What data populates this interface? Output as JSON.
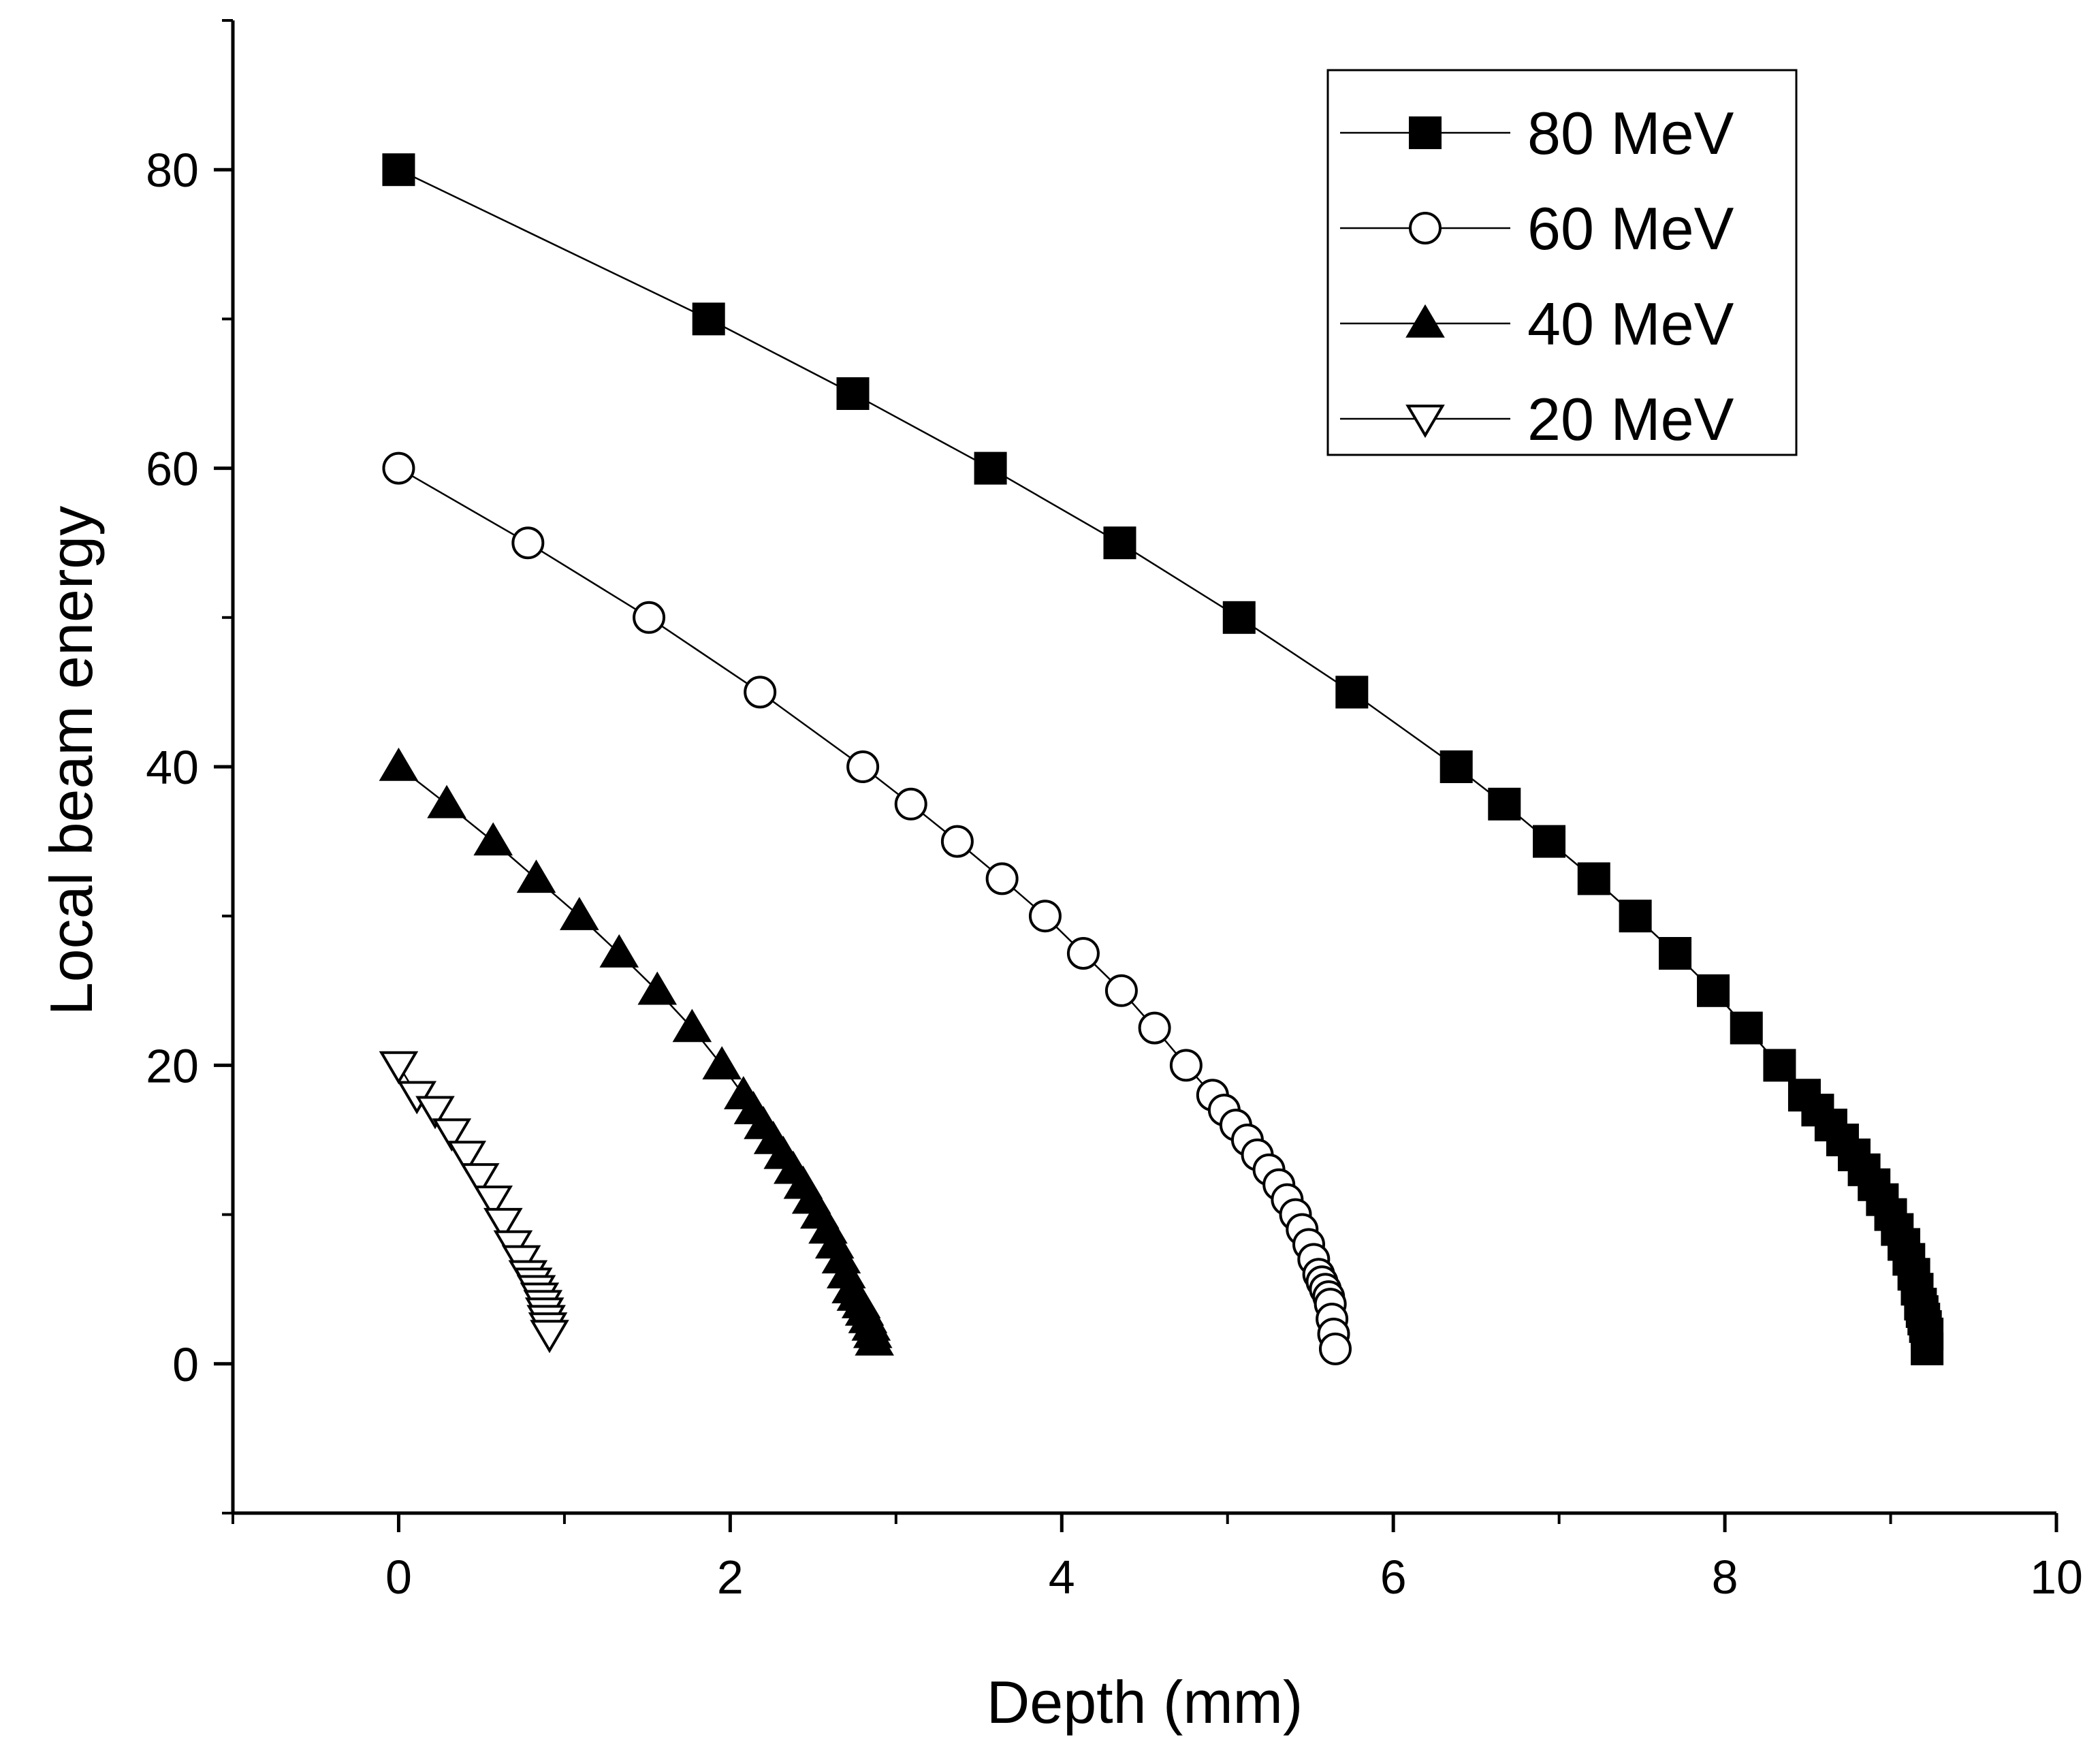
{
  "chart_data": {
    "type": "line",
    "title": "",
    "xlabel": "Depth (mm)",
    "ylabel": "Local beam energy",
    "xlim": [
      -1,
      10
    ],
    "ylim": [
      -10,
      90
    ],
    "xticks": [
      0,
      2,
      4,
      6,
      8,
      10
    ],
    "yticks": [
      0,
      20,
      40,
      60,
      80
    ],
    "grid": false,
    "legend_position": "top-right",
    "series": [
      {
        "name": "80 MeV",
        "marker": "square-filled",
        "x": [
          0,
          1.87,
          2.74,
          3.57,
          4.35,
          5.07,
          5.75,
          6.38,
          6.67,
          6.94,
          7.21,
          7.46,
          7.7,
          7.93,
          8.13,
          8.33,
          8.48,
          8.56,
          8.64,
          8.71,
          8.78,
          8.84,
          8.9,
          8.95,
          9.0,
          9.04,
          9.08,
          9.11,
          9.14,
          9.16,
          9.18,
          9.19,
          9.2,
          9.21,
          9.22,
          9.22
        ],
        "y": [
          80,
          70,
          65,
          60,
          55,
          50,
          45,
          40,
          37.5,
          35,
          32.5,
          30,
          27.5,
          25,
          22.5,
          20,
          18,
          17,
          16,
          15,
          14,
          13,
          12,
          11,
          10,
          9,
          8,
          7,
          6,
          5,
          4,
          3.5,
          3,
          2.5,
          2,
          1
        ]
      },
      {
        "name": "60 MeV",
        "marker": "circle-open",
        "x": [
          0,
          0.78,
          1.51,
          2.18,
          2.8,
          3.09,
          3.37,
          3.64,
          3.9,
          4.13,
          4.36,
          4.56,
          4.75,
          4.91,
          4.98,
          5.05,
          5.12,
          5.18,
          5.25,
          5.31,
          5.36,
          5.41,
          5.45,
          5.49,
          5.52,
          5.55,
          5.57,
          5.59,
          5.61,
          5.62,
          5.63,
          5.64,
          5.65
        ],
        "y": [
          60,
          55,
          50,
          45,
          40,
          37.5,
          35,
          32.5,
          30,
          27.5,
          25,
          22.5,
          20,
          18,
          17,
          16,
          15,
          14,
          13,
          12,
          11,
          10,
          9,
          8,
          7,
          6,
          5.5,
          5,
          4.5,
          4,
          3,
          2,
          1
        ]
      },
      {
        "name": "40 MeV",
        "marker": "triangle-up-filled",
        "x": [
          0,
          0.29,
          0.57,
          0.83,
          1.09,
          1.33,
          1.56,
          1.77,
          1.95,
          2.08,
          2.14,
          2.2,
          2.26,
          2.32,
          2.38,
          2.44,
          2.49,
          2.54,
          2.59,
          2.63,
          2.67,
          2.7,
          2.73,
          2.76,
          2.79,
          2.81,
          2.83,
          2.85,
          2.86,
          2.87
        ],
        "y": [
          40,
          37.5,
          35,
          32.5,
          30,
          27.5,
          25,
          22.5,
          20,
          18,
          17,
          16,
          15,
          14,
          13,
          12,
          11,
          10,
          9,
          8,
          7,
          6,
          5,
          4.5,
          4,
          3.5,
          3,
          2.5,
          2,
          1.5
        ]
      },
      {
        "name": "20 MeV",
        "marker": "triangle-down-open",
        "x": [
          0,
          0.11,
          0.22,
          0.32,
          0.41,
          0.49,
          0.57,
          0.63,
          0.69,
          0.74,
          0.78,
          0.81,
          0.83,
          0.85,
          0.87,
          0.88,
          0.89,
          0.9,
          0.91
        ],
        "y": [
          20,
          18,
          17,
          15.5,
          14,
          12.5,
          11,
          9.5,
          8,
          7,
          6,
          5.5,
          5,
          4.5,
          4,
          3.5,
          3,
          2.5,
          2
        ]
      }
    ]
  }
}
